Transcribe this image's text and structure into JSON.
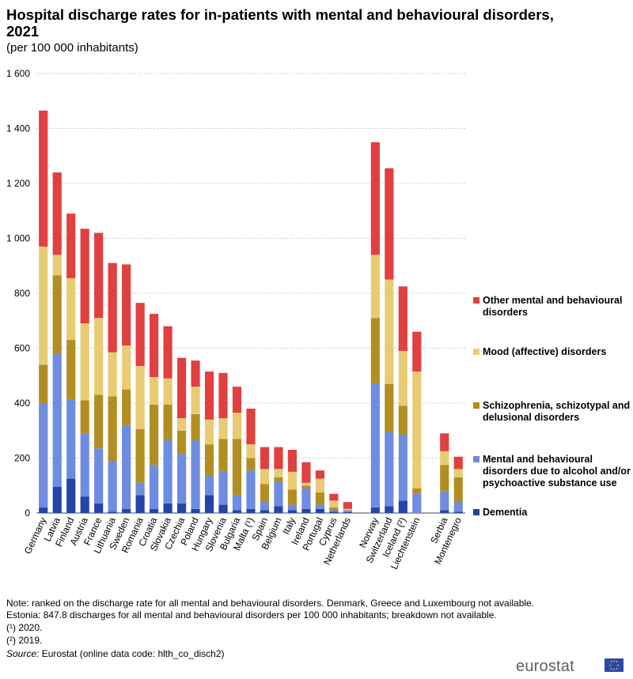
{
  "title": "Hospital discharge rates for in-patients with mental and behavioural disorders, 2021",
  "subtitle": "(per 100 000 inhabitants)",
  "chart_data": {
    "type": "bar",
    "stacked": true,
    "ylim": [
      0,
      1600
    ],
    "yticks": [
      0,
      200,
      400,
      600,
      800,
      1000,
      1200,
      1400,
      1600
    ],
    "ytick_labels": [
      "0",
      "200",
      "400",
      "600",
      "800",
      "1 000",
      "1 200",
      "1 400",
      "1 600"
    ],
    "grid": "horizontal dashed",
    "legend_position": "right",
    "categories": [
      "Germany",
      "Latvia",
      "Finland",
      "Austria",
      "France",
      "Lithuania",
      "Sweden",
      "Romania",
      "Croatia",
      "Slovakia",
      "Czechia",
      "Poland",
      "Hungary",
      "Slovenia",
      "Bulgaria",
      "Malta (¹)",
      "Spain",
      "Belgium",
      "Italy",
      "Ireland",
      "Portugal",
      "Cyprus",
      "Netherlands",
      "",
      "Norway",
      "Switzerland",
      "Iceland (²)",
      "Liechtenstein",
      "",
      "Serbia",
      "Montenegro"
    ],
    "series": [
      {
        "name": "Dementia",
        "color": "#2644a7",
        "values": [
          20,
          95,
          125,
          60,
          35,
          5,
          15,
          65,
          15,
          35,
          35,
          15,
          65,
          30,
          10,
          15,
          10,
          25,
          10,
          15,
          15,
          5,
          3,
          null,
          20,
          25,
          45,
          0,
          null,
          10,
          5
        ]
      },
      {
        "name": "Mental and behavioural disorders due to alcohol and/or psychoactive substance use",
        "color": "#6e8ce0",
        "values": [
          380,
          485,
          290,
          230,
          200,
          185,
          305,
          45,
          160,
          230,
          180,
          250,
          70,
          120,
          55,
          140,
          30,
          90,
          20,
          75,
          15,
          5,
          7,
          null,
          450,
          270,
          240,
          70,
          null,
          70,
          35
        ]
      },
      {
        "name": "Schizophrenia, schizotypal and delusional disorders",
        "color": "#b28e22",
        "values": [
          140,
          285,
          215,
          120,
          195,
          235,
          130,
          195,
          220,
          130,
          85,
          95,
          115,
          120,
          205,
          45,
          65,
          15,
          55,
          10,
          45,
          10,
          0,
          null,
          240,
          175,
          105,
          20,
          null,
          95,
          90
        ]
      },
      {
        "name": "Mood (affective) disorders",
        "color": "#e8cc73",
        "values": [
          430,
          75,
          225,
          280,
          280,
          160,
          160,
          230,
          100,
          95,
          45,
          100,
          90,
          75,
          95,
          50,
          55,
          30,
          65,
          10,
          50,
          25,
          5,
          null,
          230,
          380,
          200,
          425,
          null,
          50,
          30
        ]
      },
      {
        "name": "Other mental and behavioural disorders",
        "color": "#e04040",
        "values": [
          495,
          300,
          235,
          345,
          310,
          325,
          295,
          230,
          230,
          190,
          220,
          95,
          175,
          165,
          95,
          130,
          80,
          80,
          80,
          75,
          30,
          25,
          25,
          null,
          410,
          405,
          235,
          145,
          null,
          65,
          45
        ]
      }
    ]
  },
  "legend_labels": {
    "other": "Other mental and behavioural disorders",
    "mood": "Mood (affective) disorders",
    "schizo": "Schizophrenia, schizotypal and delusional disorders",
    "alcohol": "Mental and behavioural disorders due to alcohol and/or psychoactive substance use",
    "dementia": "Dementia"
  },
  "notes": {
    "line1": "Note: ranked on the discharge rate for all mental and behavioural disorders. Denmark, Greece and Luxembourg not available.",
    "line2": "Estonia: 847.8 discharges for all mental and behavioural disorders per 100 000 inhabitants; breakdown not available.",
    "line3": "(¹) 2020.",
    "line4": "(²) 2019.",
    "source_label": "Source:",
    "source_text": " Eurostat (online data code: hlth_co_disch2)"
  },
  "logo_text": "eurostat"
}
